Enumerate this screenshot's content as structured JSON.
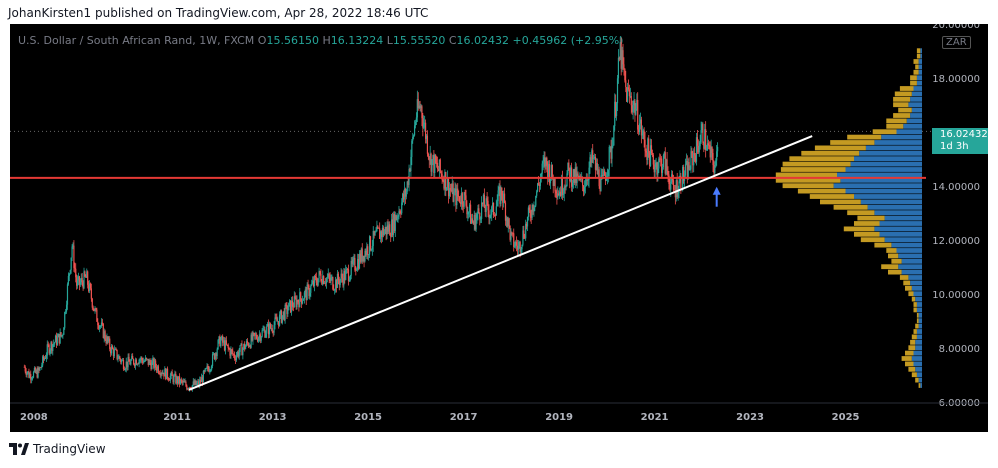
{
  "header": {
    "publisher_text": "JohanKirsten1 published on TradingView.com, Apr 28, 2022 18:46 UTC"
  },
  "footer": {
    "brand": "TradingView"
  },
  "colors": {
    "background": "#000000",
    "up": "#26a69a",
    "down": "#ef5350",
    "hline": "#e53935",
    "trendline": "#ffffff",
    "vp_up": "#2a6fb0",
    "vp_down": "#c49a22",
    "arrow": "#4a7bff"
  },
  "chart_data": {
    "type": "candlestick",
    "legend": {
      "symbol": "U.S. Dollar / South African Rand, 1W, FXCM",
      "o_label": "O",
      "o": "15.56150",
      "h_label": "H",
      "h": "16.13224",
      "l_label": "L",
      "l": "15.55520",
      "c_label": "C",
      "c": "16.02432",
      "change": "+0.45962 (+2.95%)"
    },
    "currency_badge": "ZAR",
    "last_price_tag": {
      "price": "16.02432",
      "countdown": "1d 3h"
    },
    "ylim": [
      6.0,
      20.0
    ],
    "y_ticks": [
      {
        "value": 20,
        "label": "20.00000"
      },
      {
        "value": 18,
        "label": "18.00000"
      },
      {
        "value": 16,
        "label": "16.00000"
      },
      {
        "value": 14,
        "label": "14.00000"
      },
      {
        "value": 12,
        "label": "12.00000"
      },
      {
        "value": 10,
        "label": "10.00000"
      },
      {
        "value": 8,
        "label": "8.00000"
      },
      {
        "value": 6,
        "label": "6.00000"
      }
    ],
    "xlim": [
      2007.5,
      2026.6
    ],
    "x_ticks": [
      {
        "value": 2008,
        "label": "2008"
      },
      {
        "value": 2011,
        "label": "2011"
      },
      {
        "value": 2013,
        "label": "2013"
      },
      {
        "value": 2015,
        "label": "2015"
      },
      {
        "value": 2017,
        "label": "2017"
      },
      {
        "value": 2019,
        "label": "2019"
      },
      {
        "value": 2021,
        "label": "2021"
      },
      {
        "value": 2023,
        "label": "2023"
      },
      {
        "value": 2025,
        "label": "2025"
      }
    ],
    "price_path": [
      [
        2007.8,
        7.3
      ],
      [
        2007.9,
        7.0
      ],
      [
        2008.1,
        7.1
      ],
      [
        2008.3,
        8.0
      ],
      [
        2008.6,
        8.5
      ],
      [
        2008.8,
        11.8
      ],
      [
        2008.9,
        10.3
      ],
      [
        2009.1,
        10.6
      ],
      [
        2009.3,
        9.2
      ],
      [
        2009.6,
        8.0
      ],
      [
        2009.9,
        7.4
      ],
      [
        2010.2,
        7.6
      ],
      [
        2010.5,
        7.4
      ],
      [
        2010.8,
        7.0
      ],
      [
        2011.0,
        6.8
      ],
      [
        2011.2,
        6.6
      ],
      [
        2011.45,
        6.65
      ],
      [
        2011.7,
        7.4
      ],
      [
        2011.9,
        8.3
      ],
      [
        2012.2,
        7.7
      ],
      [
        2012.5,
        8.2
      ],
      [
        2012.8,
        8.6
      ],
      [
        2013.0,
        8.8
      ],
      [
        2013.4,
        9.6
      ],
      [
        2013.7,
        10.0
      ],
      [
        2014.0,
        10.7
      ],
      [
        2014.3,
        10.4
      ],
      [
        2014.6,
        10.8
      ],
      [
        2014.9,
        11.5
      ],
      [
        2015.2,
        12.2
      ],
      [
        2015.5,
        12.5
      ],
      [
        2015.8,
        13.8
      ],
      [
        2016.0,
        16.6
      ],
      [
        2016.1,
        17.0
      ],
      [
        2016.3,
        15.0
      ],
      [
        2016.6,
        14.3
      ],
      [
        2016.8,
        13.6
      ],
      [
        2017.0,
        13.6
      ],
      [
        2017.2,
        12.6
      ],
      [
        2017.4,
        13.3
      ],
      [
        2017.6,
        13.0
      ],
      [
        2017.8,
        13.8
      ],
      [
        2018.0,
        12.0
      ],
      [
        2018.15,
        11.7
      ],
      [
        2018.5,
        13.6
      ],
      [
        2018.7,
        14.9
      ],
      [
        2019.0,
        13.8
      ],
      [
        2019.2,
        14.5
      ],
      [
        2019.5,
        14.0
      ],
      [
        2019.7,
        15.0
      ],
      [
        2019.9,
        14.0
      ],
      [
        2020.1,
        15.4
      ],
      [
        2020.28,
        19.0
      ],
      [
        2020.4,
        17.5
      ],
      [
        2020.6,
        16.9
      ],
      [
        2020.8,
        15.5
      ],
      [
        2021.0,
        14.8
      ],
      [
        2021.2,
        14.9
      ],
      [
        2021.4,
        13.8
      ],
      [
        2021.5,
        14.1
      ],
      [
        2021.7,
        14.6
      ],
      [
        2021.9,
        15.5
      ],
      [
        2022.0,
        16.0
      ],
      [
        2022.15,
        15.2
      ],
      [
        2022.28,
        14.6
      ],
      [
        2022.33,
        16.02
      ]
    ],
    "horizontal_line": {
      "price": 14.3
    },
    "trendline": {
      "from": [
        2011.25,
        6.45
      ],
      "to": [
        2024.3,
        15.85
      ]
    },
    "arrow": {
      "x": 2022.3,
      "price": 13.9
    },
    "volume_profile": [
      {
        "price": 19.0,
        "up": 0.01,
        "down": 0.02
      },
      {
        "price": 18.8,
        "up": 0.01,
        "down": 0.02
      },
      {
        "price": 18.6,
        "up": 0.02,
        "down": 0.03
      },
      {
        "price": 18.4,
        "up": 0.02,
        "down": 0.02
      },
      {
        "price": 18.2,
        "up": 0.02,
        "down": 0.03
      },
      {
        "price": 18.0,
        "up": 0.03,
        "down": 0.04
      },
      {
        "price": 17.8,
        "up": 0.03,
        "down": 0.04
      },
      {
        "price": 17.6,
        "up": 0.05,
        "down": 0.08
      },
      {
        "price": 17.4,
        "up": 0.06,
        "down": 0.1
      },
      {
        "price": 17.2,
        "up": 0.07,
        "down": 0.1
      },
      {
        "price": 17.0,
        "up": 0.08,
        "down": 0.09
      },
      {
        "price": 16.8,
        "up": 0.06,
        "down": 0.08
      },
      {
        "price": 16.6,
        "up": 0.07,
        "down": 0.1
      },
      {
        "price": 16.4,
        "up": 0.09,
        "down": 0.12
      },
      {
        "price": 16.2,
        "up": 0.11,
        "down": 0.1
      },
      {
        "price": 16.0,
        "up": 0.15,
        "down": 0.14
      },
      {
        "price": 15.8,
        "up": 0.24,
        "down": 0.2
      },
      {
        "price": 15.6,
        "up": 0.28,
        "down": 0.26
      },
      {
        "price": 15.4,
        "up": 0.33,
        "down": 0.3
      },
      {
        "price": 15.2,
        "up": 0.37,
        "down": 0.34
      },
      {
        "price": 15.0,
        "up": 0.4,
        "down": 0.38
      },
      {
        "price": 14.8,
        "up": 0.42,
        "down": 0.4
      },
      {
        "price": 14.6,
        "up": 0.45,
        "down": 0.38
      },
      {
        "price": 14.4,
        "up": 0.5,
        "down": 0.36
      },
      {
        "price": 14.2,
        "up": 0.48,
        "down": 0.38
      },
      {
        "price": 14.0,
        "up": 0.52,
        "down": 0.3
      },
      {
        "price": 13.8,
        "up": 0.45,
        "down": 0.28
      },
      {
        "price": 13.6,
        "up": 0.4,
        "down": 0.26
      },
      {
        "price": 13.4,
        "up": 0.36,
        "down": 0.24
      },
      {
        "price": 13.2,
        "up": 0.32,
        "down": 0.2
      },
      {
        "price": 13.0,
        "up": 0.28,
        "down": 0.16
      },
      {
        "price": 12.8,
        "up": 0.22,
        "down": 0.16
      },
      {
        "price": 12.6,
        "up": 0.25,
        "down": 0.15
      },
      {
        "price": 12.4,
        "up": 0.28,
        "down": 0.18
      },
      {
        "price": 12.2,
        "up": 0.25,
        "down": 0.15
      },
      {
        "price": 12.0,
        "up": 0.22,
        "down": 0.14
      },
      {
        "price": 11.8,
        "up": 0.18,
        "down": 0.1
      },
      {
        "price": 11.6,
        "up": 0.15,
        "down": 0.06
      },
      {
        "price": 11.4,
        "up": 0.14,
        "down": 0.06
      },
      {
        "price": 11.2,
        "up": 0.12,
        "down": 0.06
      },
      {
        "price": 11.0,
        "up": 0.14,
        "down": 0.1
      },
      {
        "price": 10.8,
        "up": 0.12,
        "down": 0.08
      },
      {
        "price": 10.6,
        "up": 0.08,
        "down": 0.05
      },
      {
        "price": 10.4,
        "up": 0.07,
        "down": 0.04
      },
      {
        "price": 10.2,
        "up": 0.06,
        "down": 0.04
      },
      {
        "price": 10.0,
        "up": 0.05,
        "down": 0.03
      },
      {
        "price": 9.8,
        "up": 0.04,
        "down": 0.02
      },
      {
        "price": 9.6,
        "up": 0.03,
        "down": 0.02
      },
      {
        "price": 9.4,
        "up": 0.03,
        "down": 0.02
      },
      {
        "price": 9.2,
        "up": 0.02,
        "down": 0.01
      },
      {
        "price": 9.0,
        "up": 0.02,
        "down": 0.01
      },
      {
        "price": 8.8,
        "up": 0.02,
        "down": 0.02
      },
      {
        "price": 8.6,
        "up": 0.03,
        "down": 0.02
      },
      {
        "price": 8.4,
        "up": 0.03,
        "down": 0.03
      },
      {
        "price": 8.2,
        "up": 0.04,
        "down": 0.03
      },
      {
        "price": 8.0,
        "up": 0.04,
        "down": 0.04
      },
      {
        "price": 7.8,
        "up": 0.05,
        "down": 0.05
      },
      {
        "price": 7.6,
        "up": 0.06,
        "down": 0.06
      },
      {
        "price": 7.4,
        "up": 0.05,
        "down": 0.05
      },
      {
        "price": 7.2,
        "up": 0.04,
        "down": 0.04
      },
      {
        "price": 7.0,
        "up": 0.03,
        "down": 0.03
      },
      {
        "price": 6.8,
        "up": 0.02,
        "down": 0.02
      },
      {
        "price": 6.6,
        "up": 0.01,
        "down": 0.01
      }
    ]
  }
}
